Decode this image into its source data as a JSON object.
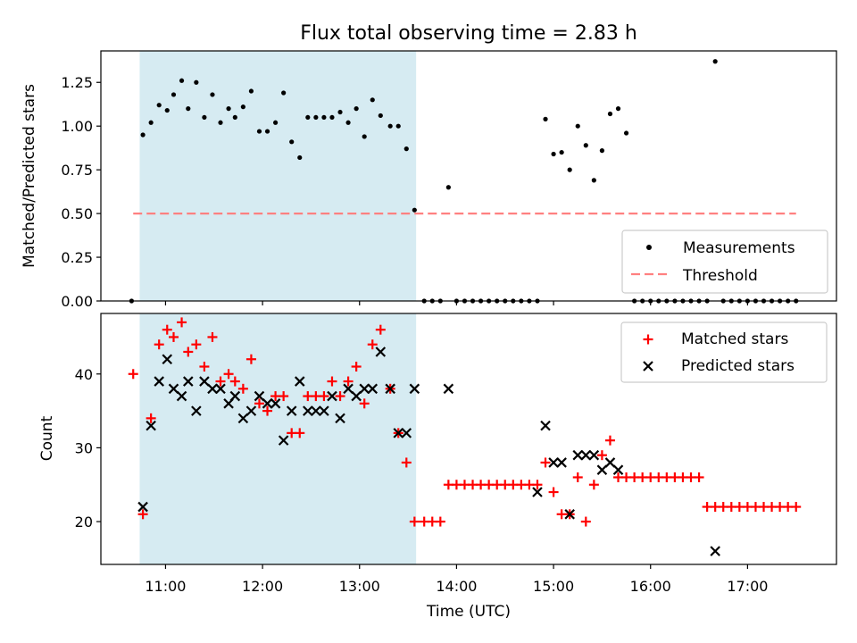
{
  "figure": {
    "title": "Flux total observing time = 2.83 h",
    "xlabel": "Time (UTC)",
    "x_ticks": [
      "11:00",
      "12:00",
      "13:00",
      "14:00",
      "15:00",
      "16:00",
      "17:00"
    ]
  },
  "colors": {
    "measurement": "#000000",
    "threshold": "#ff8080",
    "matched": "#ff0000",
    "predicted": "#000000",
    "shade": "#add8e6"
  },
  "chart_data": [
    {
      "type": "scatter",
      "panel": "top",
      "ylabel": "Matched/Predicted stars",
      "xlim": [
        "10:20",
        "17:55"
      ],
      "ylim": [
        0,
        1.43
      ],
      "y_ticks": [
        "0.00",
        "0.25",
        "0.50",
        "0.75",
        "1.00",
        "1.25"
      ],
      "grid": false,
      "legend_position": "lower right",
      "shaded_span": [
        "10:44",
        "13:35"
      ],
      "threshold": {
        "name": "Threshold",
        "y": 0.5,
        "x_range": [
          "10:40",
          "17:30"
        ],
        "style": "dashed"
      },
      "series": [
        {
          "name": "Measurements",
          "marker": "dot",
          "points": [
            [
              "10:39",
              0
            ],
            [
              "10:46",
              0.95
            ],
            [
              "10:51",
              1.02
            ],
            [
              "10:56",
              1.12
            ],
            [
              "11:01",
              1.09
            ],
            [
              "11:05",
              1.18
            ],
            [
              "11:10",
              1.26
            ],
            [
              "11:14",
              1.1
            ],
            [
              "11:19",
              1.25
            ],
            [
              "11:24",
              1.05
            ],
            [
              "11:29",
              1.18
            ],
            [
              "11:34",
              1.02
            ],
            [
              "11:39",
              1.1
            ],
            [
              "11:43",
              1.05
            ],
            [
              "11:48",
              1.11
            ],
            [
              "11:53",
              1.2
            ],
            [
              "11:58",
              0.97
            ],
            [
              "12:03",
              0.97
            ],
            [
              "12:08",
              1.02
            ],
            [
              "12:13",
              1.19
            ],
            [
              "12:18",
              0.91
            ],
            [
              "12:23",
              0.82
            ],
            [
              "12:28",
              1.05
            ],
            [
              "12:33",
              1.05
            ],
            [
              "12:38",
              1.05
            ],
            [
              "12:43",
              1.05
            ],
            [
              "12:48",
              1.08
            ],
            [
              "12:53",
              1.02
            ],
            [
              "12:58",
              1.1
            ],
            [
              "13:03",
              0.94
            ],
            [
              "13:08",
              1.15
            ],
            [
              "13:13",
              1.06
            ],
            [
              "13:19",
              1.0
            ],
            [
              "13:24",
              1.0
            ],
            [
              "13:29",
              0.87
            ],
            [
              "13:34",
              0.52
            ],
            [
              "13:40",
              0
            ],
            [
              "13:45",
              0
            ],
            [
              "13:50",
              0
            ],
            [
              "13:55",
              0.65
            ],
            [
              "14:00",
              0
            ],
            [
              "14:05",
              0
            ],
            [
              "14:10",
              0
            ],
            [
              "14:15",
              0
            ],
            [
              "14:20",
              0
            ],
            [
              "14:25",
              0
            ],
            [
              "14:30",
              0
            ],
            [
              "14:35",
              0
            ],
            [
              "14:40",
              0
            ],
            [
              "14:45",
              0
            ],
            [
              "14:50",
              0
            ],
            [
              "14:55",
              1.04
            ],
            [
              "15:00",
              0.84
            ],
            [
              "15:05",
              0.85
            ],
            [
              "15:10",
              0.75
            ],
            [
              "15:15",
              1.0
            ],
            [
              "15:20",
              0.89
            ],
            [
              "15:25",
              0.69
            ],
            [
              "15:30",
              0.86
            ],
            [
              "15:35",
              1.07
            ],
            [
              "15:40",
              1.1
            ],
            [
              "15:45",
              0.96
            ],
            [
              "15:50",
              0
            ],
            [
              "15:55",
              0
            ],
            [
              "16:00",
              0
            ],
            [
              "16:05",
              0
            ],
            [
              "16:10",
              0
            ],
            [
              "16:15",
              0
            ],
            [
              "16:20",
              0
            ],
            [
              "16:25",
              0
            ],
            [
              "16:30",
              0
            ],
            [
              "16:35",
              0
            ],
            [
              "16:40",
              1.37
            ],
            [
              "16:45",
              0
            ],
            [
              "16:50",
              0
            ],
            [
              "16:55",
              0
            ],
            [
              "17:00",
              0
            ],
            [
              "17:05",
              0
            ],
            [
              "17:10",
              0
            ],
            [
              "17:15",
              0
            ],
            [
              "17:20",
              0
            ],
            [
              "17:25",
              0
            ],
            [
              "17:30",
              0
            ]
          ]
        }
      ]
    },
    {
      "type": "scatter",
      "panel": "bottom",
      "ylabel": "Count",
      "xlim": [
        "10:20",
        "17:55"
      ],
      "ylim": [
        14.2,
        48.2
      ],
      "y_ticks": [
        "20",
        "30",
        "40"
      ],
      "grid": false,
      "legend_position": "upper right",
      "shaded_span": [
        "10:44",
        "13:35"
      ],
      "series": [
        {
          "name": "Matched stars",
          "marker": "plus",
          "points": [
            [
              "10:40",
              40
            ],
            [
              "10:46",
              21
            ],
            [
              "10:51",
              34
            ],
            [
              "10:56",
              44
            ],
            [
              "11:01",
              46
            ],
            [
              "11:05",
              45
            ],
            [
              "11:10",
              47
            ],
            [
              "11:14",
              43
            ],
            [
              "11:19",
              44
            ],
            [
              "11:24",
              41
            ],
            [
              "11:29",
              45
            ],
            [
              "11:34",
              39
            ],
            [
              "11:39",
              40
            ],
            [
              "11:43",
              39
            ],
            [
              "11:48",
              38
            ],
            [
              "11:53",
              42
            ],
            [
              "11:58",
              36
            ],
            [
              "12:03",
              35
            ],
            [
              "12:08",
              37
            ],
            [
              "12:13",
              37
            ],
            [
              "12:18",
              32
            ],
            [
              "12:23",
              32
            ],
            [
              "12:28",
              37
            ],
            [
              "12:33",
              37
            ],
            [
              "12:38",
              37
            ],
            [
              "12:43",
              39
            ],
            [
              "12:48",
              37
            ],
            [
              "12:53",
              39
            ],
            [
              "12:58",
              41
            ],
            [
              "13:03",
              36
            ],
            [
              "13:08",
              44
            ],
            [
              "13:13",
              46
            ],
            [
              "13:19",
              38
            ],
            [
              "13:24",
              32
            ],
            [
              "13:29",
              28
            ],
            [
              "13:34",
              20
            ],
            [
              "13:40",
              20
            ],
            [
              "13:45",
              20
            ],
            [
              "13:50",
              20
            ],
            [
              "13:55",
              25
            ],
            [
              "14:00",
              25
            ],
            [
              "14:05",
              25
            ],
            [
              "14:10",
              25
            ],
            [
              "14:15",
              25
            ],
            [
              "14:20",
              25
            ],
            [
              "14:25",
              25
            ],
            [
              "14:30",
              25
            ],
            [
              "14:35",
              25
            ],
            [
              "14:40",
              25
            ],
            [
              "14:45",
              25
            ],
            [
              "14:50",
              25
            ],
            [
              "14:55",
              28
            ],
            [
              "15:00",
              24
            ],
            [
              "15:05",
              21
            ],
            [
              "15:10",
              21
            ],
            [
              "15:15",
              26
            ],
            [
              "15:20",
              20
            ],
            [
              "15:25",
              25
            ],
            [
              "15:30",
              29
            ],
            [
              "15:35",
              31
            ],
            [
              "15:40",
              26
            ],
            [
              "15:45",
              26
            ],
            [
              "15:50",
              26
            ],
            [
              "15:55",
              26
            ],
            [
              "16:00",
              26
            ],
            [
              "16:05",
              26
            ],
            [
              "16:10",
              26
            ],
            [
              "16:15",
              26
            ],
            [
              "16:20",
              26
            ],
            [
              "16:25",
              26
            ],
            [
              "16:30",
              26
            ],
            [
              "16:35",
              22
            ],
            [
              "16:40",
              22
            ],
            [
              "16:45",
              22
            ],
            [
              "16:50",
              22
            ],
            [
              "16:55",
              22
            ],
            [
              "17:00",
              22
            ],
            [
              "17:05",
              22
            ],
            [
              "17:10",
              22
            ],
            [
              "17:15",
              22
            ],
            [
              "17:20",
              22
            ],
            [
              "17:25",
              22
            ],
            [
              "17:30",
              22
            ]
          ]
        },
        {
          "name": "Predicted stars",
          "marker": "x",
          "points": [
            [
              "10:46",
              22
            ],
            [
              "10:51",
              33
            ],
            [
              "10:56",
              39
            ],
            [
              "11:01",
              42
            ],
            [
              "11:05",
              38
            ],
            [
              "11:10",
              37
            ],
            [
              "11:14",
              39
            ],
            [
              "11:19",
              35
            ],
            [
              "11:24",
              39
            ],
            [
              "11:29",
              38
            ],
            [
              "11:34",
              38
            ],
            [
              "11:39",
              36
            ],
            [
              "11:43",
              37
            ],
            [
              "11:48",
              34
            ],
            [
              "11:53",
              35
            ],
            [
              "11:58",
              37
            ],
            [
              "12:03",
              36
            ],
            [
              "12:08",
              36
            ],
            [
              "12:13",
              31
            ],
            [
              "12:18",
              35
            ],
            [
              "12:23",
              39
            ],
            [
              "12:28",
              35
            ],
            [
              "12:33",
              35
            ],
            [
              "12:38",
              35
            ],
            [
              "12:43",
              37
            ],
            [
              "12:48",
              34
            ],
            [
              "12:53",
              38
            ],
            [
              "12:58",
              37
            ],
            [
              "13:03",
              38
            ],
            [
              "13:08",
              38
            ],
            [
              "13:13",
              43
            ],
            [
              "13:19",
              38
            ],
            [
              "13:24",
              32
            ],
            [
              "13:29",
              32
            ],
            [
              "13:34",
              38
            ],
            [
              "13:55",
              38
            ],
            [
              "14:50",
              24
            ],
            [
              "14:55",
              33
            ],
            [
              "15:00",
              28
            ],
            [
              "15:05",
              28
            ],
            [
              "15:10",
              21
            ],
            [
              "15:15",
              29
            ],
            [
              "15:20",
              29
            ],
            [
              "15:25",
              29
            ],
            [
              "15:30",
              27
            ],
            [
              "15:35",
              28
            ],
            [
              "15:40",
              27
            ],
            [
              "16:40",
              16
            ]
          ]
        }
      ]
    }
  ]
}
